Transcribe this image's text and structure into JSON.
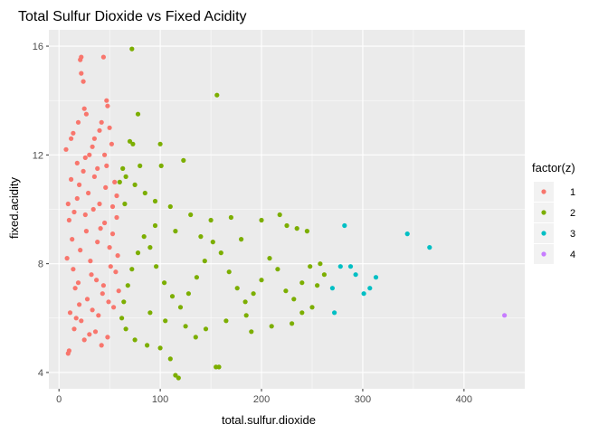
{
  "chart_data": {
    "type": "scatter",
    "title": "Total Sulfur Dioxide vs Fixed Acidity",
    "xlabel": "total.sulfur.dioxide",
    "ylabel": "fixed.acidity",
    "xlim": [
      -10,
      460
    ],
    "ylim": [
      3.4,
      16.6
    ],
    "xticks": [
      0,
      100,
      200,
      300,
      400
    ],
    "yticks": [
      4,
      8,
      12,
      16
    ],
    "grid": true,
    "background": "#ebebeb",
    "legend": {
      "title": "factor(z)",
      "position": "right"
    },
    "series": [
      {
        "name": "1",
        "color": "#F8766D",
        "points": [
          [
            7,
            12.2
          ],
          [
            9,
            4.7
          ],
          [
            10,
            4.8
          ],
          [
            12,
            12.6
          ],
          [
            14,
            12.8
          ],
          [
            18,
            11.7
          ],
          [
            19,
            13.2
          ],
          [
            21,
            15.5
          ],
          [
            22,
            15.6
          ],
          [
            22,
            15.0
          ],
          [
            24,
            14.7
          ],
          [
            25,
            13.7
          ],
          [
            27,
            13.5
          ],
          [
            30,
            12.0
          ],
          [
            33,
            12.3
          ],
          [
            35,
            12.6
          ],
          [
            40,
            12.9
          ],
          [
            42,
            13.2
          ],
          [
            44,
            15.6
          ],
          [
            47,
            14.0
          ],
          [
            48,
            13.8
          ],
          [
            50,
            13.0
          ],
          [
            52,
            12.4
          ],
          [
            45,
            12.0
          ],
          [
            38,
            11.5
          ],
          [
            55,
            11.0
          ],
          [
            57,
            10.5
          ],
          [
            30,
            5.4
          ],
          [
            25,
            5.2
          ],
          [
            36,
            5.5
          ],
          [
            48,
            5.3
          ],
          [
            42,
            5.0
          ],
          [
            15,
            5.6
          ],
          [
            10,
            9.6
          ],
          [
            8,
            8.2
          ],
          [
            13,
            8.9
          ],
          [
            16,
            7.1
          ],
          [
            20,
            6.5
          ],
          [
            26,
            9.8
          ],
          [
            31,
            8.1
          ],
          [
            37,
            7.4
          ],
          [
            43,
            6.9
          ],
          [
            50,
            8.6
          ],
          [
            56,
            7.7
          ],
          [
            12,
            11.1
          ],
          [
            18,
            10.4
          ],
          [
            24,
            11.4
          ],
          [
            29,
            10.6
          ],
          [
            34,
            10.0
          ],
          [
            41,
            9.3
          ],
          [
            46,
            10.8
          ],
          [
            53,
            9.1
          ],
          [
            58,
            8.3
          ],
          [
            11,
            6.2
          ],
          [
            17,
            6.0
          ],
          [
            22,
            5.9
          ],
          [
            28,
            6.7
          ],
          [
            33,
            6.3
          ],
          [
            39,
            6.1
          ],
          [
            44,
            7.2
          ],
          [
            49,
            6.6
          ],
          [
            54,
            6.4
          ],
          [
            59,
            7.0
          ],
          [
            14,
            7.8
          ],
          [
            21,
            8.5
          ],
          [
            27,
            9.2
          ],
          [
            32,
            7.6
          ],
          [
            38,
            8.8
          ],
          [
            45,
            9.5
          ],
          [
            51,
            7.9
          ],
          [
            9,
            10.2
          ],
          [
            15,
            9.9
          ],
          [
            20,
            10.9
          ],
          [
            26,
            11.9
          ],
          [
            35,
            11.2
          ],
          [
            40,
            10.2
          ],
          [
            47,
            11.6
          ],
          [
            53,
            10.1
          ],
          [
            57,
            9.7
          ],
          [
            19,
            7.3
          ]
        ]
      },
      {
        "name": "2",
        "color": "#7CAE00",
        "points": [
          [
            72,
            15.9
          ],
          [
            156,
            14.2
          ],
          [
            78,
            13.5
          ],
          [
            70,
            12.5
          ],
          [
            73,
            12.4
          ],
          [
            100,
            12.4
          ],
          [
            123,
            11.8
          ],
          [
            80,
            11.6
          ],
          [
            101,
            11.6
          ],
          [
            63,
            11.5
          ],
          [
            66,
            11.2
          ],
          [
            75,
            10.9
          ],
          [
            65,
            10.2
          ],
          [
            60,
            11.0
          ],
          [
            85,
            10.6
          ],
          [
            95,
            10.3
          ],
          [
            110,
            10.1
          ],
          [
            130,
            9.8
          ],
          [
            150,
            9.6
          ],
          [
            170,
            9.7
          ],
          [
            200,
            9.6
          ],
          [
            218,
            9.8
          ],
          [
            225,
            9.4
          ],
          [
            235,
            9.3
          ],
          [
            245,
            9.2
          ],
          [
            258,
            8.0
          ],
          [
            262,
            7.6
          ],
          [
            255,
            7.2
          ],
          [
            250,
            6.4
          ],
          [
            240,
            6.2
          ],
          [
            230,
            5.8
          ],
          [
            210,
            5.7
          ],
          [
            190,
            5.5
          ],
          [
            158,
            4.2
          ],
          [
            155,
            4.2
          ],
          [
            135,
            5.3
          ],
          [
            118,
            3.8
          ],
          [
            115,
            3.9
          ],
          [
            110,
            4.5
          ],
          [
            100,
            4.9
          ],
          [
            87,
            5.0
          ],
          [
            75,
            5.2
          ],
          [
            66,
            5.6
          ],
          [
            62,
            6.0
          ],
          [
            64,
            6.6
          ],
          [
            68,
            7.2
          ],
          [
            72,
            7.8
          ],
          [
            78,
            8.4
          ],
          [
            84,
            9.0
          ],
          [
            90,
            8.6
          ],
          [
            96,
            7.9
          ],
          [
            104,
            7.3
          ],
          [
            112,
            6.8
          ],
          [
            120,
            6.4
          ],
          [
            128,
            6.9
          ],
          [
            136,
            7.5
          ],
          [
            144,
            8.1
          ],
          [
            152,
            8.8
          ],
          [
            160,
            8.4
          ],
          [
            168,
            7.7
          ],
          [
            176,
            7.1
          ],
          [
            184,
            6.6
          ],
          [
            192,
            6.9
          ],
          [
            200,
            7.4
          ],
          [
            208,
            8.2
          ],
          [
            216,
            7.8
          ],
          [
            224,
            7.0
          ],
          [
            232,
            6.7
          ],
          [
            240,
            7.3
          ],
          [
            248,
            7.9
          ],
          [
            90,
            6.2
          ],
          [
            105,
            5.9
          ],
          [
            125,
            5.7
          ],
          [
            145,
            5.6
          ],
          [
            165,
            5.9
          ],
          [
            185,
            6.1
          ],
          [
            95,
            9.4
          ],
          [
            115,
            9.2
          ],
          [
            140,
            9.0
          ],
          [
            180,
            8.9
          ]
        ]
      },
      {
        "name": "3",
        "color": "#00BFC4",
        "points": [
          [
            282,
            9.4
          ],
          [
            344,
            9.1
          ],
          [
            366,
            8.6
          ],
          [
            278,
            7.9
          ],
          [
            288,
            7.9
          ],
          [
            293,
            7.6
          ],
          [
            313,
            7.5
          ],
          [
            270,
            7.1
          ],
          [
            307,
            7.1
          ],
          [
            301,
            6.9
          ],
          [
            272,
            6.2
          ]
        ]
      },
      {
        "name": "4",
        "color": "#C77CFF",
        "points": [
          [
            440,
            6.1
          ]
        ]
      }
    ]
  }
}
